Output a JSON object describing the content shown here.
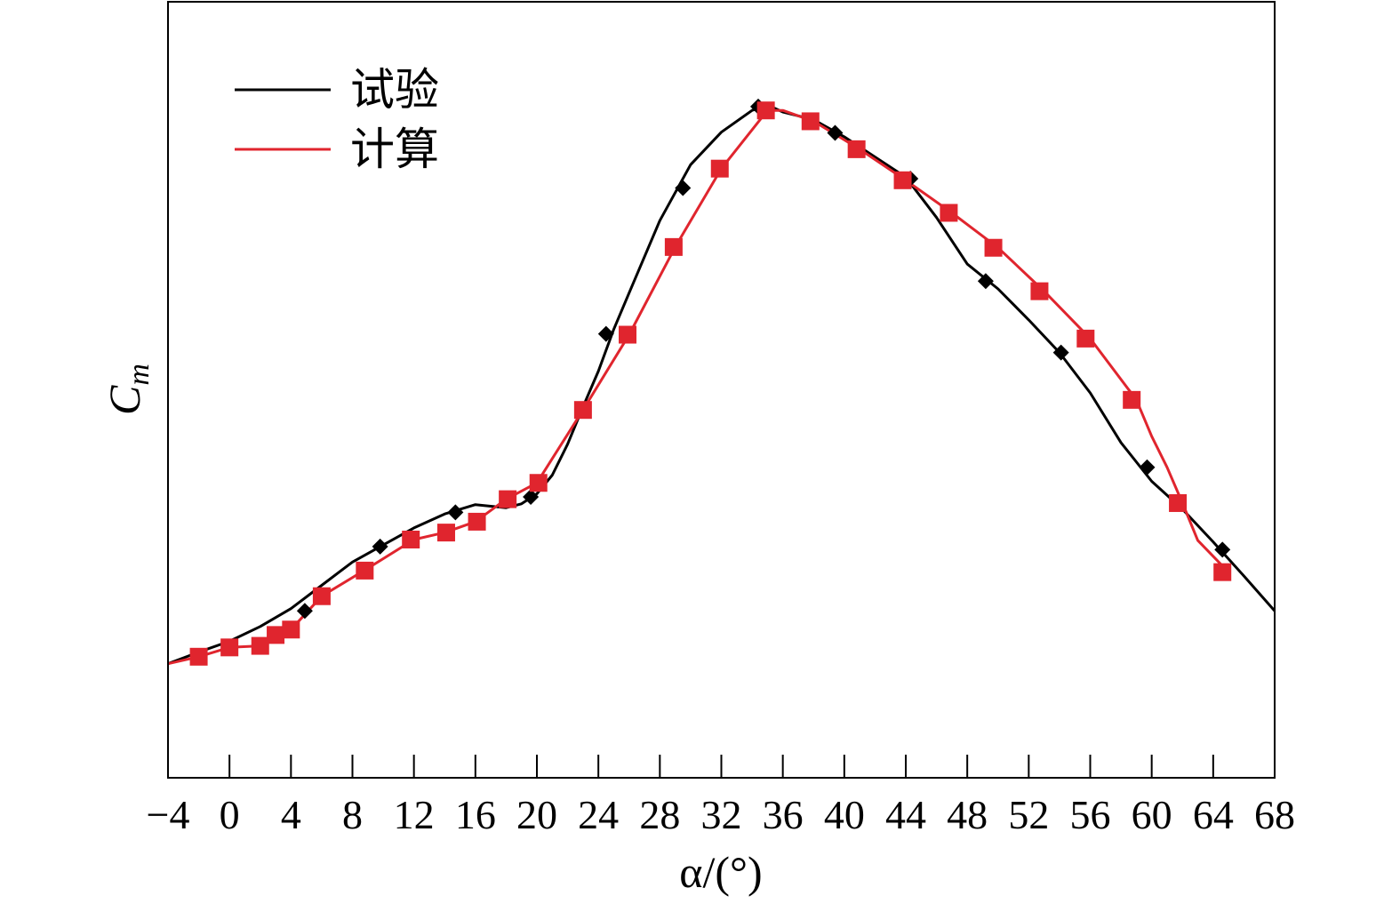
{
  "chart_data": {
    "type": "line",
    "title": "",
    "xlabel": "α/(°)",
    "ylabel_main": "C",
    "ylabel_sub": "m",
    "xlim": [
      -4,
      68
    ],
    "ylim": [
      0,
      1
    ],
    "y_tick_labels_shown": false,
    "grid": false,
    "legend_position": "top-left",
    "x_ticks": [
      {
        "value": -4,
        "label": "−4"
      },
      {
        "value": 0,
        "label": "0"
      },
      {
        "value": 4,
        "label": "4"
      },
      {
        "value": 8,
        "label": "8"
      },
      {
        "value": 12,
        "label": "12"
      },
      {
        "value": 16,
        "label": "16"
      },
      {
        "value": 20,
        "label": "20"
      },
      {
        "value": 24,
        "label": "24"
      },
      {
        "value": 28,
        "label": "28"
      },
      {
        "value": 32,
        "label": "32"
      },
      {
        "value": 36,
        "label": "36"
      },
      {
        "value": 40,
        "label": "40"
      },
      {
        "value": 44,
        "label": "44"
      },
      {
        "value": 48,
        "label": "48"
      },
      {
        "value": 52,
        "label": "52"
      },
      {
        "value": 56,
        "label": "56"
      },
      {
        "value": 60,
        "label": "60"
      },
      {
        "value": 64,
        "label": "64"
      },
      {
        "value": 68,
        "label": "68"
      }
    ],
    "series": [
      {
        "name": "试验",
        "color": "#000000",
        "marker": "diamond",
        "line": [
          [
            -4,
            0.147
          ],
          [
            -2,
            0.162
          ],
          [
            0,
            0.176
          ],
          [
            2,
            0.195
          ],
          [
            4,
            0.218
          ],
          [
            6,
            0.248
          ],
          [
            8,
            0.278
          ],
          [
            10,
            0.3
          ],
          [
            12,
            0.322
          ],
          [
            14,
            0.34
          ],
          [
            16,
            0.352
          ],
          [
            18,
            0.348
          ],
          [
            19,
            0.353
          ],
          [
            20,
            0.366
          ],
          [
            21,
            0.39
          ],
          [
            22,
            0.43
          ],
          [
            23,
            0.478
          ],
          [
            24,
            0.524
          ],
          [
            25,
            0.578
          ],
          [
            26,
            0.625
          ],
          [
            28,
            0.718
          ],
          [
            30,
            0.79
          ],
          [
            32,
            0.832
          ],
          [
            34,
            0.86
          ],
          [
            35,
            0.867
          ],
          [
            36,
            0.858
          ],
          [
            38,
            0.848
          ],
          [
            40,
            0.826
          ],
          [
            42,
            0.8
          ],
          [
            44,
            0.774
          ],
          [
            46,
            0.722
          ],
          [
            48,
            0.662
          ],
          [
            50,
            0.63
          ],
          [
            52,
            0.59
          ],
          [
            54,
            0.548
          ],
          [
            56,
            0.496
          ],
          [
            58,
            0.432
          ],
          [
            60,
            0.382
          ],
          [
            62,
            0.346
          ],
          [
            64,
            0.304
          ],
          [
            66,
            0.26
          ],
          [
            68,
            0.215
          ]
        ],
        "markers": [
          [
            4.9,
            0.215
          ],
          [
            9.8,
            0.298
          ],
          [
            14.7,
            0.342
          ],
          [
            19.6,
            0.362
          ],
          [
            24.5,
            0.572
          ],
          [
            29.5,
            0.76
          ],
          [
            34.4,
            0.865
          ],
          [
            39.4,
            0.831
          ],
          [
            44.3,
            0.772
          ],
          [
            49.2,
            0.64
          ],
          [
            54.1,
            0.548
          ],
          [
            59.7,
            0.4
          ],
          [
            64.6,
            0.294
          ]
        ]
      },
      {
        "name": "计算",
        "color": "#e0252e",
        "marker": "square",
        "line": [
          [
            -4,
            0.147
          ],
          [
            -2,
            0.156
          ],
          [
            0,
            0.168
          ],
          [
            2,
            0.17
          ],
          [
            3,
            0.184
          ],
          [
            4,
            0.191
          ],
          [
            6,
            0.234
          ],
          [
            9,
            0.27
          ],
          [
            12,
            0.307
          ],
          [
            14,
            0.316
          ],
          [
            16,
            0.33
          ],
          [
            18,
            0.359
          ],
          [
            20,
            0.38
          ],
          [
            23,
            0.474
          ],
          [
            26,
            0.571
          ],
          [
            29,
            0.684
          ],
          [
            32,
            0.785
          ],
          [
            35,
            0.86
          ],
          [
            36,
            0.86
          ],
          [
            38,
            0.846
          ],
          [
            41,
            0.81
          ],
          [
            44,
            0.77
          ],
          [
            47,
            0.728
          ],
          [
            50,
            0.683
          ],
          [
            53,
            0.627
          ],
          [
            56,
            0.566
          ],
          [
            59,
            0.487
          ],
          [
            60,
            0.44
          ],
          [
            61,
            0.4
          ],
          [
            62,
            0.354
          ],
          [
            63,
            0.306
          ],
          [
            65,
            0.265
          ]
        ],
        "markers": [
          [
            -2,
            0.156
          ],
          [
            0,
            0.168
          ],
          [
            2,
            0.17
          ],
          [
            3,
            0.184
          ],
          [
            4,
            0.191
          ],
          [
            6,
            0.234
          ],
          [
            8.8,
            0.267
          ],
          [
            11.8,
            0.307
          ],
          [
            14.1,
            0.316
          ],
          [
            16.1,
            0.33
          ],
          [
            18.1,
            0.359
          ],
          [
            20.1,
            0.38
          ],
          [
            23.0,
            0.474
          ],
          [
            25.9,
            0.571
          ],
          [
            28.9,
            0.684
          ],
          [
            31.9,
            0.785
          ],
          [
            34.9,
            0.86
          ],
          [
            37.8,
            0.846
          ],
          [
            40.8,
            0.81
          ],
          [
            43.8,
            0.77
          ],
          [
            46.8,
            0.728
          ],
          [
            49.7,
            0.683
          ],
          [
            52.7,
            0.627
          ],
          [
            55.7,
            0.566
          ],
          [
            58.7,
            0.487
          ],
          [
            61.7,
            0.354
          ],
          [
            64.6,
            0.265
          ]
        ]
      }
    ]
  }
}
